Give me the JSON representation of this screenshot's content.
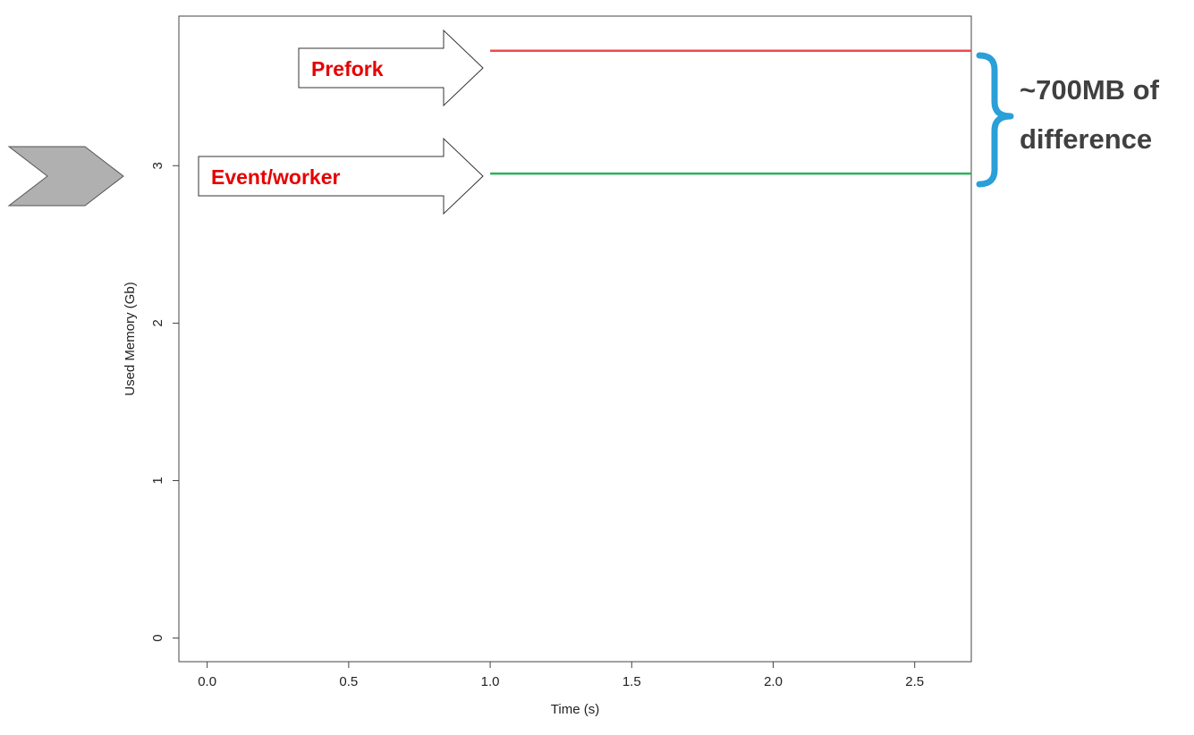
{
  "chart_data": {
    "type": "line",
    "xlabel": "Time (s)",
    "ylabel": "Used Memory (Gb)",
    "xlim": [
      -0.1,
      2.7
    ],
    "ylim": [
      -0.15,
      3.95
    ],
    "xticks": [
      0.0,
      0.5,
      1.0,
      1.5,
      2.0,
      2.5
    ],
    "xtick_labels": [
      "0.0",
      "0.5",
      "1.0",
      "1.5",
      "2.0",
      "2.5"
    ],
    "yticks": [
      0,
      1,
      2,
      3
    ],
    "ytick_labels": [
      "0",
      "1",
      "2",
      "3"
    ],
    "grid": false,
    "series": [
      {
        "name": "Prefork",
        "color": "#f0484a",
        "x": [
          1.0,
          2.7
        ],
        "y": [
          3.73,
          3.73
        ]
      },
      {
        "name": "Event/worker",
        "color": "#2db25a",
        "x": [
          1.0,
          2.7
        ],
        "y": [
          2.95,
          2.95
        ]
      }
    ],
    "annotations": {
      "prefork_label": "Prefork",
      "event_label": "Event/worker",
      "label_color": "#e60000",
      "brace_text_line1": "~700MB of",
      "brace_text_line2": "difference",
      "brace_color": "#2a9fd8",
      "brace_text_color": "#404040"
    }
  },
  "decor": {
    "chevron_color": "#b0b0b0"
  }
}
